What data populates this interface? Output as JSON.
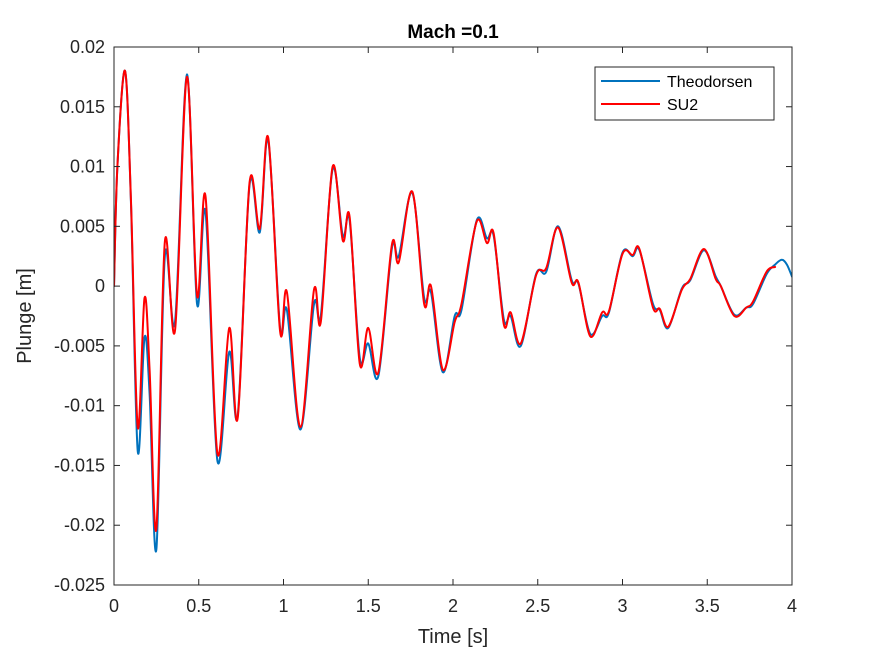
{
  "chart_data": {
    "type": "line",
    "title": "Mach =0.1",
    "xlabel": "Time [s]",
    "ylabel": "Plunge [m]",
    "xlim": [
      0,
      4
    ],
    "ylim": [
      -0.025,
      0.02
    ],
    "xticks": [
      0,
      0.5,
      1,
      1.5,
      2,
      2.5,
      3,
      3.5,
      4
    ],
    "xtick_labels": [
      "0",
      "0.5",
      "1",
      "1.5",
      "2",
      "2.5",
      "3",
      "3.5",
      "4"
    ],
    "yticks": [
      0.02,
      0.015,
      0.01,
      0.005,
      0,
      -0.005,
      -0.01,
      -0.015,
      -0.02,
      -0.025
    ],
    "ytick_labels": [
      "0.02",
      "0.015",
      "0.01",
      "0.005",
      "0",
      "-0.005",
      "-0.01",
      "-0.015",
      "-0.02",
      "-0.025"
    ],
    "grid": false,
    "legend_position": "top-right",
    "series": [
      {
        "name": "Theodorsen",
        "color": "#0072BD",
        "points": [
          [
            0,
            0
          ],
          [
            0.02,
            0.01
          ],
          [
            0.065,
            0.018
          ],
          [
            0.1,
            0.007
          ],
          [
            0.14,
            -0.0138
          ],
          [
            0.18,
            -0.0043
          ],
          [
            0.21,
            -0.009
          ],
          [
            0.25,
            -0.022
          ],
          [
            0.3,
            0.0025
          ],
          [
            0.36,
            -0.003
          ],
          [
            0.43,
            0.0177
          ],
          [
            0.49,
            -0.0015
          ],
          [
            0.54,
            0.0062
          ],
          [
            0.61,
            -0.0146
          ],
          [
            0.68,
            -0.0055
          ],
          [
            0.73,
            -0.0108
          ],
          [
            0.8,
            0.0085
          ],
          [
            0.86,
            0.0045
          ],
          [
            0.91,
            0.0122
          ],
          [
            0.98,
            -0.0035
          ],
          [
            1.02,
            -0.002
          ],
          [
            1.1,
            -0.012
          ],
          [
            1.18,
            -0.0015
          ],
          [
            1.22,
            -0.0025
          ],
          [
            1.29,
            0.0098
          ],
          [
            1.35,
            0.0042
          ],
          [
            1.39,
            0.0055
          ],
          [
            1.45,
            -0.006
          ],
          [
            1.5,
            -0.0048
          ],
          [
            1.56,
            -0.0075
          ],
          [
            1.64,
            0.0032
          ],
          [
            1.68,
            0.0025
          ],
          [
            1.76,
            0.0078
          ],
          [
            1.83,
            -0.001
          ],
          [
            1.87,
            -0.0005
          ],
          [
            1.94,
            -0.0072
          ],
          [
            2.01,
            -0.0025
          ],
          [
            2.05,
            -0.002
          ],
          [
            2.14,
            0.0055
          ],
          [
            2.2,
            0.004
          ],
          [
            2.24,
            0.0042
          ],
          [
            2.3,
            -0.0028
          ],
          [
            2.34,
            -0.0025
          ],
          [
            2.4,
            -0.005
          ],
          [
            2.49,
            0.001
          ],
          [
            2.55,
            0.0012
          ],
          [
            2.62,
            0.005
          ],
          [
            2.7,
            0.0005
          ],
          [
            2.74,
            0.0002
          ],
          [
            2.81,
            -0.004
          ],
          [
            2.88,
            -0.0025
          ],
          [
            2.92,
            -0.0022
          ],
          [
            3.0,
            0.0028
          ],
          [
            3.06,
            0.0025
          ],
          [
            3.1,
            0.003
          ],
          [
            3.18,
            -0.0015
          ],
          [
            3.22,
            -0.002
          ],
          [
            3.27,
            -0.0035
          ],
          [
            3.35,
            -0.0002
          ],
          [
            3.4,
            0.0005
          ],
          [
            3.48,
            0.003
          ],
          [
            3.55,
            0.0008
          ],
          [
            3.58,
            0
          ],
          [
            3.66,
            -0.0024
          ],
          [
            3.73,
            -0.0018
          ],
          [
            3.77,
            -0.0015
          ],
          [
            3.85,
            0.001
          ],
          [
            3.9,
            0.0018
          ],
          [
            3.94,
            0.0022
          ],
          [
            3.97,
            0.0018
          ],
          [
            4.0,
            0.0008
          ]
        ]
      },
      {
        "name": "SU2",
        "color": "#FF0000",
        "points": [
          [
            0,
            0
          ],
          [
            0.02,
            0.01
          ],
          [
            0.065,
            0.018
          ],
          [
            0.1,
            0.0072
          ],
          [
            0.14,
            -0.0118
          ],
          [
            0.18,
            -0.001
          ],
          [
            0.21,
            -0.007
          ],
          [
            0.25,
            -0.0203
          ],
          [
            0.3,
            0.0037
          ],
          [
            0.36,
            -0.0037
          ],
          [
            0.43,
            0.0175
          ],
          [
            0.49,
            -0.0008
          ],
          [
            0.54,
            0.0075
          ],
          [
            0.61,
            -0.014
          ],
          [
            0.68,
            -0.0035
          ],
          [
            0.73,
            -0.011
          ],
          [
            0.8,
            0.0087
          ],
          [
            0.86,
            0.0048
          ],
          [
            0.91,
            0.0124
          ],
          [
            0.98,
            -0.0038
          ],
          [
            1.02,
            -0.0005
          ],
          [
            1.1,
            -0.0118
          ],
          [
            1.18,
            -0.0003
          ],
          [
            1.22,
            -0.003
          ],
          [
            1.29,
            0.01
          ],
          [
            1.35,
            0.0038
          ],
          [
            1.39,
            0.0058
          ],
          [
            1.45,
            -0.0065
          ],
          [
            1.5,
            -0.0035
          ],
          [
            1.56,
            -0.0072
          ],
          [
            1.64,
            0.0035
          ],
          [
            1.68,
            0.002
          ],
          [
            1.76,
            0.0079
          ],
          [
            1.83,
            -0.0015
          ],
          [
            1.87,
            0
          ],
          [
            1.94,
            -0.007
          ],
          [
            2.01,
            -0.003
          ],
          [
            2.05,
            -0.0015
          ],
          [
            2.14,
            0.0054
          ],
          [
            2.2,
            0.0036
          ],
          [
            2.24,
            0.0044
          ],
          [
            2.3,
            -0.0032
          ],
          [
            2.34,
            -0.0022
          ],
          [
            2.4,
            -0.0048
          ],
          [
            2.49,
            0.0009
          ],
          [
            2.55,
            0.0015
          ],
          [
            2.62,
            0.0049
          ],
          [
            2.7,
            0.0003
          ],
          [
            2.74,
            0.0003
          ],
          [
            2.81,
            -0.0042
          ],
          [
            2.88,
            -0.0022
          ],
          [
            2.92,
            -0.0021
          ],
          [
            3.0,
            0.0027
          ],
          [
            3.06,
            0.0026
          ],
          [
            3.1,
            0.0031
          ],
          [
            3.18,
            -0.0018
          ],
          [
            3.22,
            -0.0019
          ],
          [
            3.27,
            -0.0034
          ],
          [
            3.35,
            -0.0003
          ],
          [
            3.4,
            0.0006
          ],
          [
            3.48,
            0.0031
          ],
          [
            3.55,
            0.0006
          ],
          [
            3.58,
            0
          ],
          [
            3.66,
            -0.0025
          ],
          [
            3.73,
            -0.0018
          ],
          [
            3.77,
            -0.0013
          ],
          [
            3.85,
            0.0012
          ],
          [
            3.9,
            0.0016
          ]
        ]
      }
    ]
  }
}
